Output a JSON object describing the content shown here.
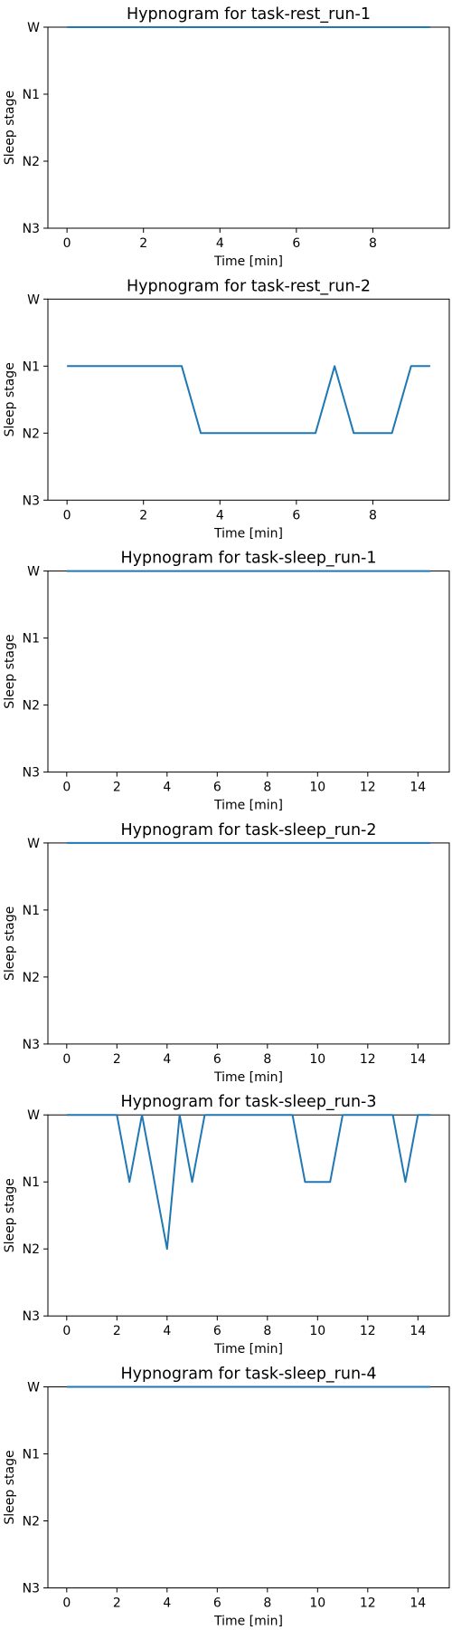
{
  "figure": {
    "line_color": "#1f77b4"
  },
  "chart_data": [
    {
      "type": "line",
      "title": "Hypnogram for task-rest_run-1",
      "xlabel": "Time [min]",
      "ylabel": "Sleep stage",
      "xlim": [
        -0.5,
        10.0
      ],
      "xticks": [
        0,
        2,
        4,
        6,
        8
      ],
      "ylim": [
        3,
        0
      ],
      "yticks": [
        0,
        1,
        2,
        3
      ],
      "yticklabels": [
        "W",
        "N1",
        "N2",
        "N3"
      ],
      "series": [
        {
          "x": [
            0,
            0.5,
            1,
            1.5,
            2,
            2.5,
            3,
            3.5,
            4,
            4.5,
            5,
            5.5,
            6,
            6.5,
            7,
            7.5,
            8,
            8.5,
            9,
            9.5
          ],
          "y": [
            0,
            0,
            0,
            0,
            0,
            0,
            0,
            0,
            0,
            0,
            0,
            0,
            0,
            0,
            0,
            0,
            0,
            0,
            0,
            0
          ]
        }
      ]
    },
    {
      "type": "line",
      "title": "Hypnogram for task-rest_run-2",
      "xlabel": "Time [min]",
      "ylabel": "Sleep stage",
      "xlim": [
        -0.5,
        10.0
      ],
      "xticks": [
        0,
        2,
        4,
        6,
        8
      ],
      "ylim": [
        3,
        0
      ],
      "yticks": [
        0,
        1,
        2,
        3
      ],
      "yticklabels": [
        "W",
        "N1",
        "N2",
        "N3"
      ],
      "series": [
        {
          "x": [
            0,
            0.5,
            1,
            1.5,
            2,
            2.5,
            3,
            3.5,
            4,
            4.5,
            5,
            5.5,
            6,
            6.5,
            7,
            7.5,
            8,
            8.5,
            9,
            9.5
          ],
          "y": [
            1,
            1,
            1,
            1,
            1,
            1,
            1,
            2,
            2,
            2,
            2,
            2,
            2,
            2,
            1,
            2,
            2,
            2,
            1,
            1
          ]
        }
      ]
    },
    {
      "type": "line",
      "title": "Hypnogram for task-sleep_run-1",
      "xlabel": "Time [min]",
      "ylabel": "Sleep stage",
      "xlim": [
        -0.75,
        15.25
      ],
      "xticks": [
        0,
        2,
        4,
        6,
        8,
        10,
        12,
        14
      ],
      "ylim": [
        3,
        0
      ],
      "yticks": [
        0,
        1,
        2,
        3
      ],
      "yticklabels": [
        "W",
        "N1",
        "N2",
        "N3"
      ],
      "series": [
        {
          "x": [
            0,
            0.5,
            1,
            1.5,
            2,
            2.5,
            3,
            3.5,
            4,
            4.5,
            5,
            5.5,
            6,
            6.5,
            7,
            7.5,
            8,
            8.5,
            9,
            9.5,
            10,
            10.5,
            11,
            11.5,
            12,
            12.5,
            13,
            13.5,
            14,
            14.5
          ],
          "y": [
            0,
            0,
            0,
            0,
            0,
            0,
            0,
            0,
            0,
            0,
            0,
            0,
            0,
            0,
            0,
            0,
            0,
            0,
            0,
            0,
            0,
            0,
            0,
            0,
            0,
            0,
            0,
            0,
            0,
            0
          ]
        }
      ]
    },
    {
      "type": "line",
      "title": "Hypnogram for task-sleep_run-2",
      "xlabel": "Time [min]",
      "ylabel": "Sleep stage",
      "xlim": [
        -0.75,
        15.25
      ],
      "xticks": [
        0,
        2,
        4,
        6,
        8,
        10,
        12,
        14
      ],
      "ylim": [
        3,
        0
      ],
      "yticks": [
        0,
        1,
        2,
        3
      ],
      "yticklabels": [
        "W",
        "N1",
        "N2",
        "N3"
      ],
      "series": [
        {
          "x": [
            0,
            0.5,
            1,
            1.5,
            2,
            2.5,
            3,
            3.5,
            4,
            4.5,
            5,
            5.5,
            6,
            6.5,
            7,
            7.5,
            8,
            8.5,
            9,
            9.5,
            10,
            10.5,
            11,
            11.5,
            12,
            12.5,
            13,
            13.5,
            14,
            14.5
          ],
          "y": [
            0,
            0,
            0,
            0,
            0,
            0,
            0,
            0,
            0,
            0,
            0,
            0,
            0,
            0,
            0,
            0,
            0,
            0,
            0,
            0,
            0,
            0,
            0,
            0,
            0,
            0,
            0,
            0,
            0,
            0
          ]
        }
      ]
    },
    {
      "type": "line",
      "title": "Hypnogram for task-sleep_run-3",
      "xlabel": "Time [min]",
      "ylabel": "Sleep stage",
      "xlim": [
        -0.75,
        15.25
      ],
      "xticks": [
        0,
        2,
        4,
        6,
        8,
        10,
        12,
        14
      ],
      "ylim": [
        3,
        0
      ],
      "yticks": [
        0,
        1,
        2,
        3
      ],
      "yticklabels": [
        "W",
        "N1",
        "N2",
        "N3"
      ],
      "series": [
        {
          "x": [
            0,
            0.5,
            1,
            1.5,
            2,
            2.5,
            3,
            3.5,
            4,
            4.5,
            5,
            5.5,
            6,
            6.5,
            7,
            7.5,
            8,
            8.5,
            9,
            9.5,
            10,
            10.5,
            11,
            11.5,
            12,
            12.5,
            13,
            13.5,
            14,
            14.5
          ],
          "y": [
            0,
            0,
            0,
            0,
            0,
            1,
            0,
            1,
            2,
            0,
            1,
            0,
            0,
            0,
            0,
            0,
            0,
            0,
            0,
            1,
            1,
            1,
            0,
            0,
            0,
            0,
            0,
            1,
            0,
            0
          ]
        }
      ]
    },
    {
      "type": "line",
      "title": "Hypnogram for task-sleep_run-4",
      "xlabel": "Time [min]",
      "ylabel": "Sleep stage",
      "xlim": [
        -0.75,
        15.25
      ],
      "xticks": [
        0,
        2,
        4,
        6,
        8,
        10,
        12,
        14
      ],
      "ylim": [
        3,
        0
      ],
      "yticks": [
        0,
        1,
        2,
        3
      ],
      "yticklabels": [
        "W",
        "N1",
        "N2",
        "N3"
      ],
      "series": [
        {
          "x": [
            0,
            0.5,
            1,
            1.5,
            2,
            2.5,
            3,
            3.5,
            4,
            4.5,
            5,
            5.5,
            6,
            6.5,
            7,
            7.5,
            8,
            8.5,
            9,
            9.5,
            10,
            10.5,
            11,
            11.5,
            12,
            12.5,
            13,
            13.5,
            14,
            14.5
          ],
          "y": [
            0,
            0,
            0,
            0,
            0,
            0,
            0,
            0,
            0,
            0,
            0,
            0,
            0,
            0,
            0,
            0,
            0,
            0,
            0,
            0,
            0,
            0,
            0,
            0,
            0,
            0,
            0,
            0,
            0,
            0
          ]
        }
      ]
    }
  ]
}
